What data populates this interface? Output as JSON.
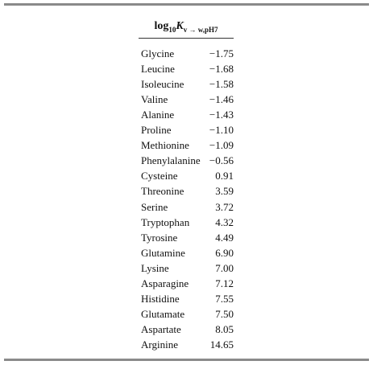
{
  "table": {
    "header": {
      "base": "log",
      "base_sub": "10",
      "symbol": "K",
      "symbol_sub": "v → w,pH7"
    },
    "rows": [
      [
        "Glycine",
        "−1.75"
      ],
      [
        "Leucine",
        "−1.68"
      ],
      [
        "Isoleucine",
        "−1.58"
      ],
      [
        "Valine",
        "−1.46"
      ],
      [
        "Alanine",
        "−1.43"
      ],
      [
        "Proline",
        "−1.10"
      ],
      [
        "Methionine",
        "−1.09"
      ],
      [
        "Phenylalanine",
        "−0.56"
      ],
      [
        "Cysteine",
        "0.91"
      ],
      [
        "Threonine",
        "3.59"
      ],
      [
        "Serine",
        "3.72"
      ],
      [
        "Tryptophan",
        "4.32"
      ],
      [
        "Tyrosine",
        "4.49"
      ],
      [
        "Glutamine",
        "6.90"
      ],
      [
        "Lysine",
        "7.00"
      ],
      [
        "Asparagine",
        "7.12"
      ],
      [
        "Histidine",
        "7.55"
      ],
      [
        "Glutamate",
        "7.50"
      ],
      [
        "Aspartate",
        "8.05"
      ],
      [
        "Arginine",
        "14.65"
      ]
    ]
  }
}
